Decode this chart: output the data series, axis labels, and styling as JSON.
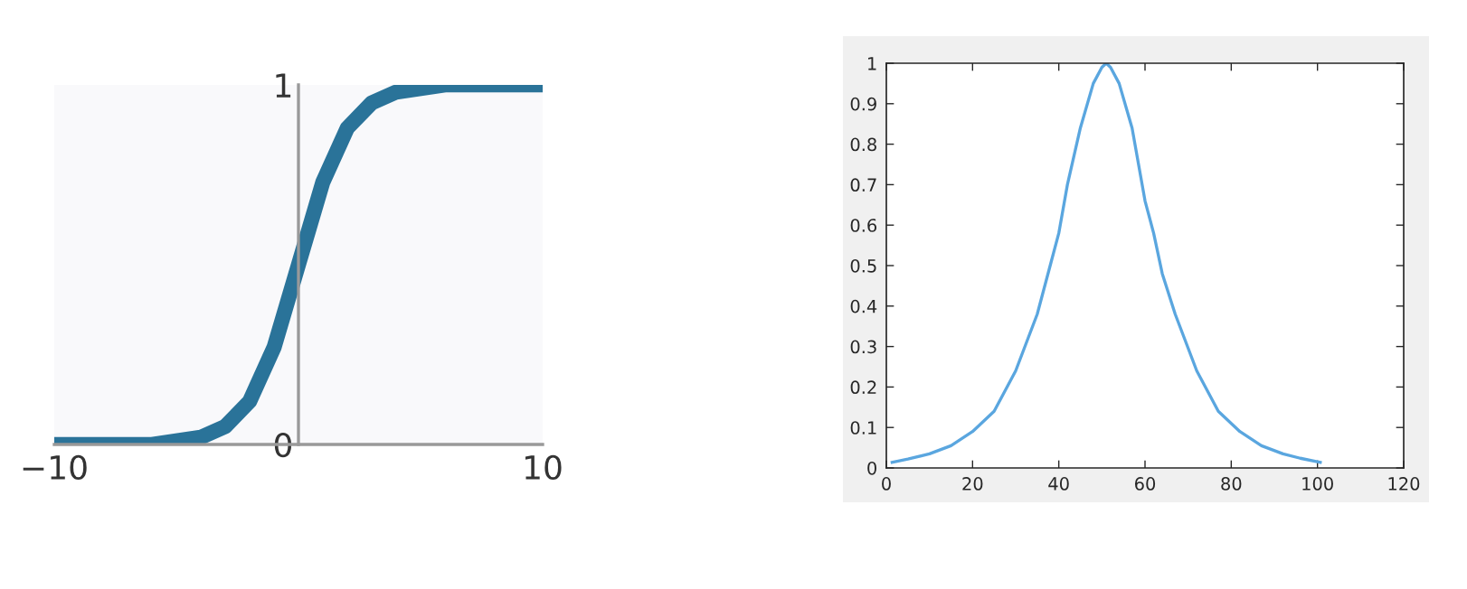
{
  "chart_data": [
    {
      "type": "line",
      "x": [
        -10,
        -8,
        -6,
        -5,
        -4,
        -3,
        -2,
        -1,
        0,
        1,
        2,
        3,
        4,
        5,
        6,
        8,
        10
      ],
      "series": [
        {
          "color": "#1f6b94",
          "values": [
            0,
            0,
            0,
            0.01,
            0.02,
            0.05,
            0.12,
            0.27,
            0.5,
            0.73,
            0.88,
            0.95,
            0.98,
            0.99,
            1,
            1,
            1
          ]
        }
      ],
      "xlim": [
        -10,
        10
      ],
      "ylim": [
        0,
        1
      ],
      "xticks": [
        {
          "value": -10,
          "label": "−10"
        },
        10
      ],
      "yticks": [
        0,
        1
      ],
      "grid": false,
      "legend": false,
      "marker": "none",
      "line_style": "solid"
    },
    {
      "type": "line",
      "x": [
        1,
        5,
        10,
        15,
        20,
        25,
        30,
        35,
        38,
        40,
        42,
        45,
        48,
        50,
        51,
        52,
        54,
        57,
        60,
        62,
        64,
        67,
        72,
        77,
        82,
        87,
        92,
        96,
        101
      ],
      "series": [
        {
          "color": "#5aa6df",
          "values": [
            0.013,
            0.022,
            0.035,
            0.055,
            0.09,
            0.14,
            0.24,
            0.38,
            0.5,
            0.58,
            0.7,
            0.84,
            0.95,
            0.99,
            1,
            0.99,
            0.95,
            0.84,
            0.66,
            0.58,
            0.48,
            0.38,
            0.24,
            0.14,
            0.09,
            0.055,
            0.035,
            0.024,
            0.013
          ]
        }
      ],
      "xlim": [
        0,
        120
      ],
      "ylim": [
        0,
        1
      ],
      "xticks": [
        0,
        20,
        40,
        60,
        80,
        100,
        120
      ],
      "yticks": [
        0,
        0.1,
        0.2,
        0.3,
        0.4,
        0.5,
        0.6,
        0.7,
        0.8,
        0.9,
        1
      ],
      "grid": false,
      "legend": false,
      "marker": "none",
      "line_style": "solid"
    }
  ]
}
